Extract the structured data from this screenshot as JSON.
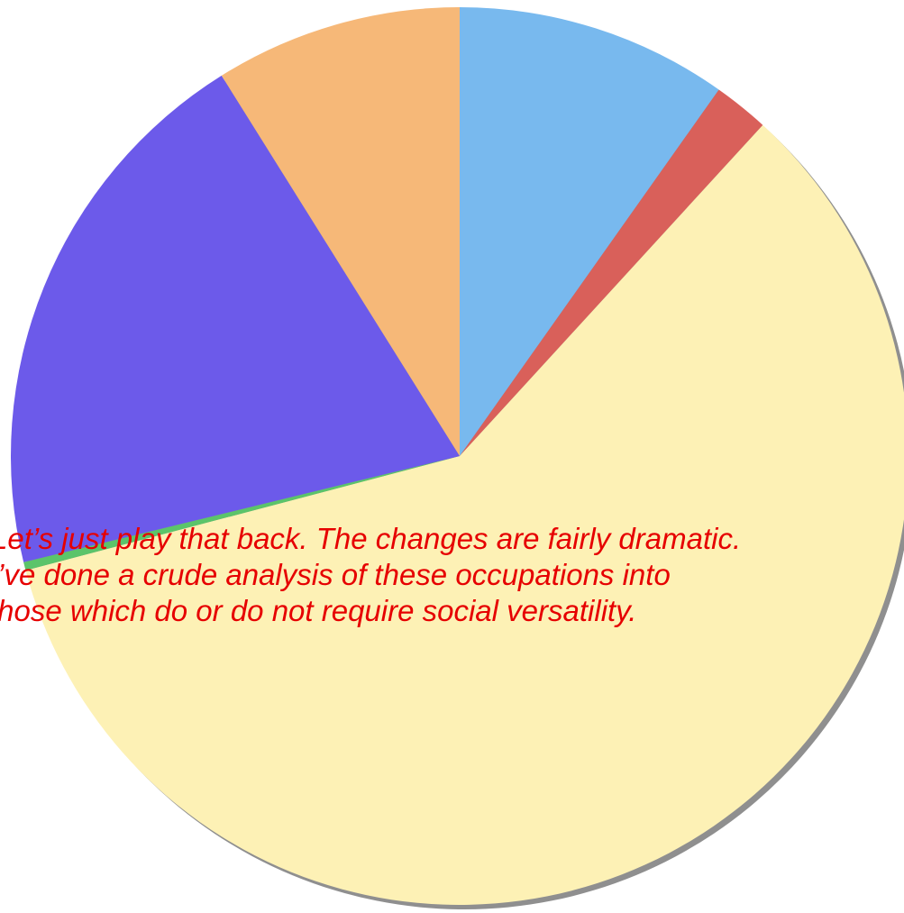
{
  "colors": {
    "shadow": "#8f8f8f",
    "caption_text": "#e60000"
  },
  "chart_data": {
    "type": "pie",
    "start_angle_deg": 0,
    "direction": "clockwise",
    "slices": [
      {
        "value": 9.8,
        "color": "#78b9ee"
      },
      {
        "value": 2.0,
        "color": "#d9605a"
      },
      {
        "value": 59.1,
        "color": "#fdf1b5"
      },
      {
        "value": 0.3,
        "color": "#5bc46a"
      },
      {
        "value": 19.9,
        "color": "#6c5aea"
      },
      {
        "value": 8.9,
        "color": "#f6b878"
      }
    ]
  },
  "caption": {
    "lines": [
      "Let’s just play that back.  The changes are fairly dramatic.",
      "I’ve done a crude analysis of these occupations into",
      "those which do or do not require social versatility."
    ]
  }
}
